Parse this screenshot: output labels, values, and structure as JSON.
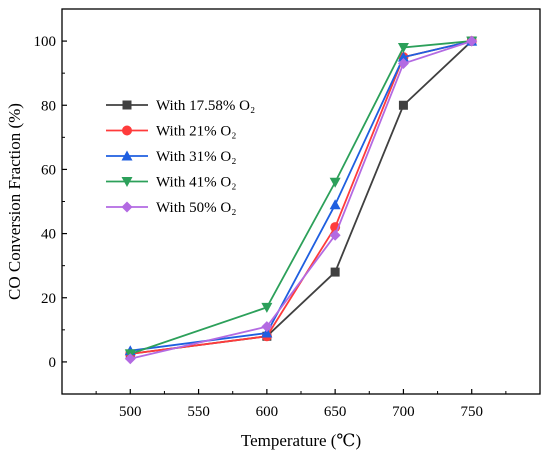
{
  "chart_data": {
    "type": "line",
    "x": [
      500,
      600,
      650,
      700,
      750
    ],
    "xlabel": "Temperature (℃)",
    "ylabel": "CO Conversion Fraction (%)",
    "xlim": [
      450,
      800
    ],
    "ylim": [
      -10,
      110
    ],
    "xticks": [
      500,
      550,
      600,
      650,
      700,
      750
    ],
    "yticks": [
      0,
      20,
      40,
      60,
      80,
      100
    ],
    "legend_position": "left",
    "grid": false,
    "series": [
      {
        "name": "With 17.58% O₂",
        "color": "#404040",
        "marker": "square",
        "values": [
          2.5,
          8,
          28,
          80,
          100
        ]
      },
      {
        "name": "With 21% O₂",
        "color": "#ff3b3b",
        "marker": "circle",
        "values": [
          2.5,
          8,
          42,
          95,
          100
        ]
      },
      {
        "name": "With 31% O₂",
        "color": "#1f5fe0",
        "marker": "triangle-up",
        "values": [
          3.5,
          9,
          49,
          95,
          100
        ]
      },
      {
        "name": "With 41% O₂",
        "color": "#2ca05a",
        "marker": "triangle-down",
        "values": [
          2.5,
          17,
          56,
          98,
          100
        ]
      },
      {
        "name": "With 50% O₂",
        "color": "#b36ae2",
        "marker": "diamond",
        "values": [
          1,
          11,
          39.5,
          93,
          100
        ]
      }
    ]
  }
}
